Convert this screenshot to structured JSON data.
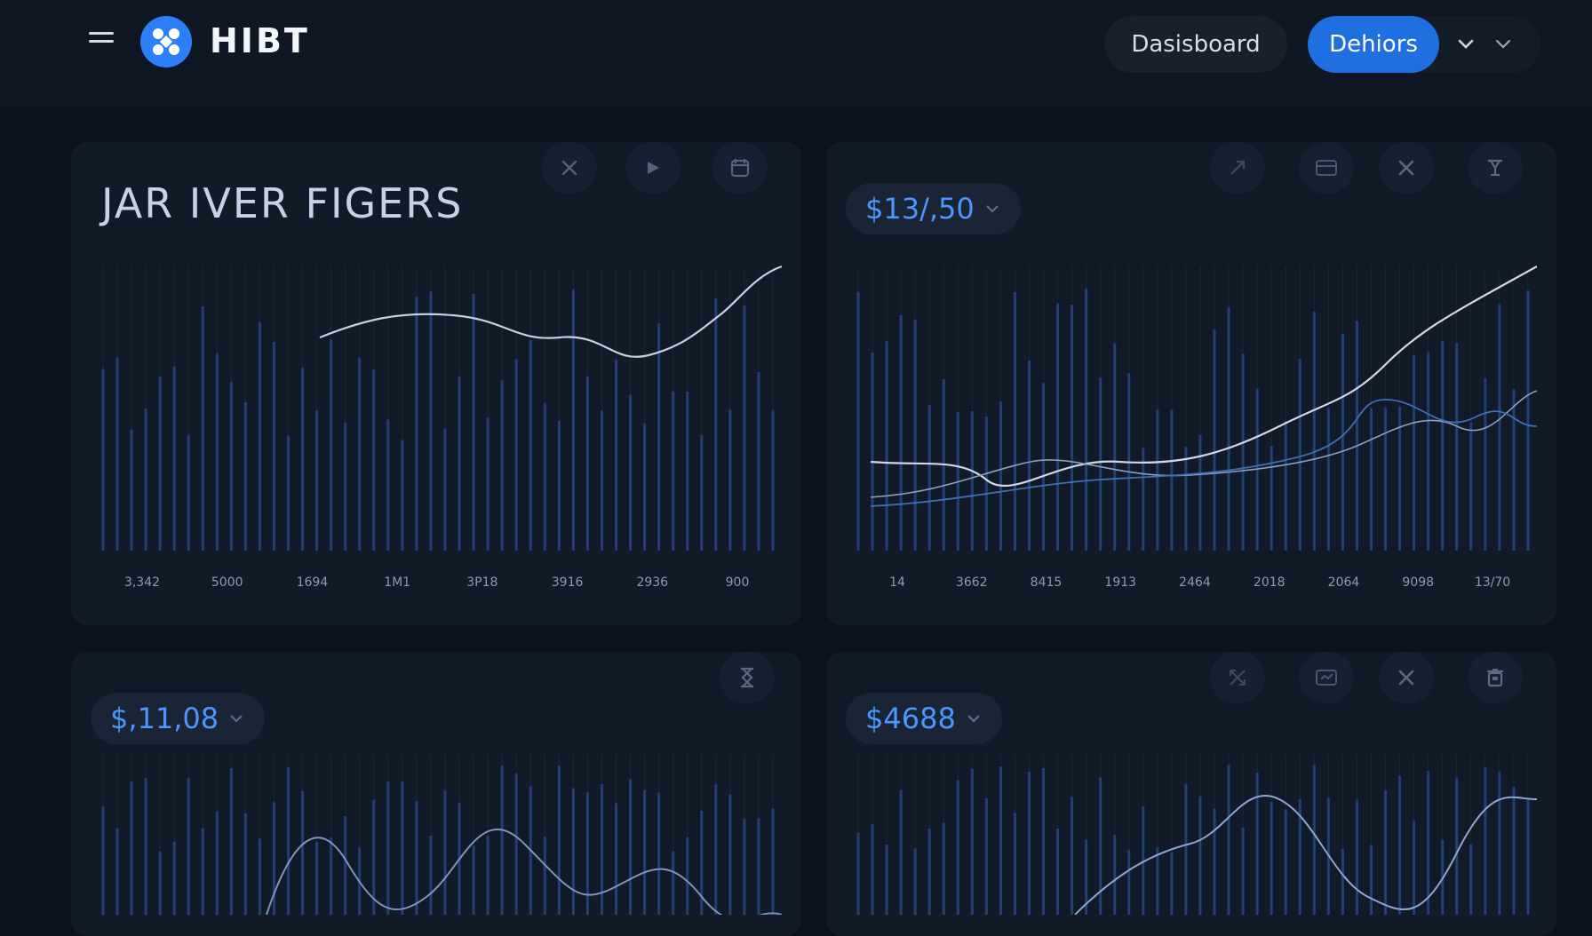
{
  "app": {
    "brand": "HIBT",
    "nav": {
      "dashboard": "Dasisboard",
      "active": "Dehiors"
    }
  },
  "icons": {
    "menu": "hamburger-icon",
    "logo": "hibt-logo-icon",
    "chevron": "chevron-down-icon"
  },
  "colors": {
    "accent": "#2d7ff9",
    "active_pill": "#1f6fe0",
    "price": "#4b97ff",
    "bars": "#244a86",
    "line": "#c7d0de"
  },
  "cards": [
    {
      "title": "JAR IVER FIGERS",
      "price": "",
      "icons": [
        "close-icon",
        "play-icon",
        "calendar-icon"
      ],
      "x_labels": [
        "3,342",
        "5000",
        "1694",
        "1M1",
        "3P18",
        "3916",
        "2936",
        "900"
      ]
    },
    {
      "title": "",
      "price": "$13/,50",
      "icons": [
        "share-icon",
        "card-icon",
        "close-icon",
        "filter-icon"
      ],
      "x_labels": [
        "14",
        "3662",
        "8415",
        "1913",
        "2464",
        "2018",
        "2064",
        "9098",
        "13/70"
      ]
    },
    {
      "title": "",
      "price": "$,11,08",
      "icons": [
        "hourglass-icon"
      ],
      "x_labels": []
    },
    {
      "title": "",
      "price": "$4688",
      "icons": [
        "expand-icon",
        "card-icon",
        "close-icon",
        "trash-icon"
      ],
      "x_labels": []
    }
  ]
}
